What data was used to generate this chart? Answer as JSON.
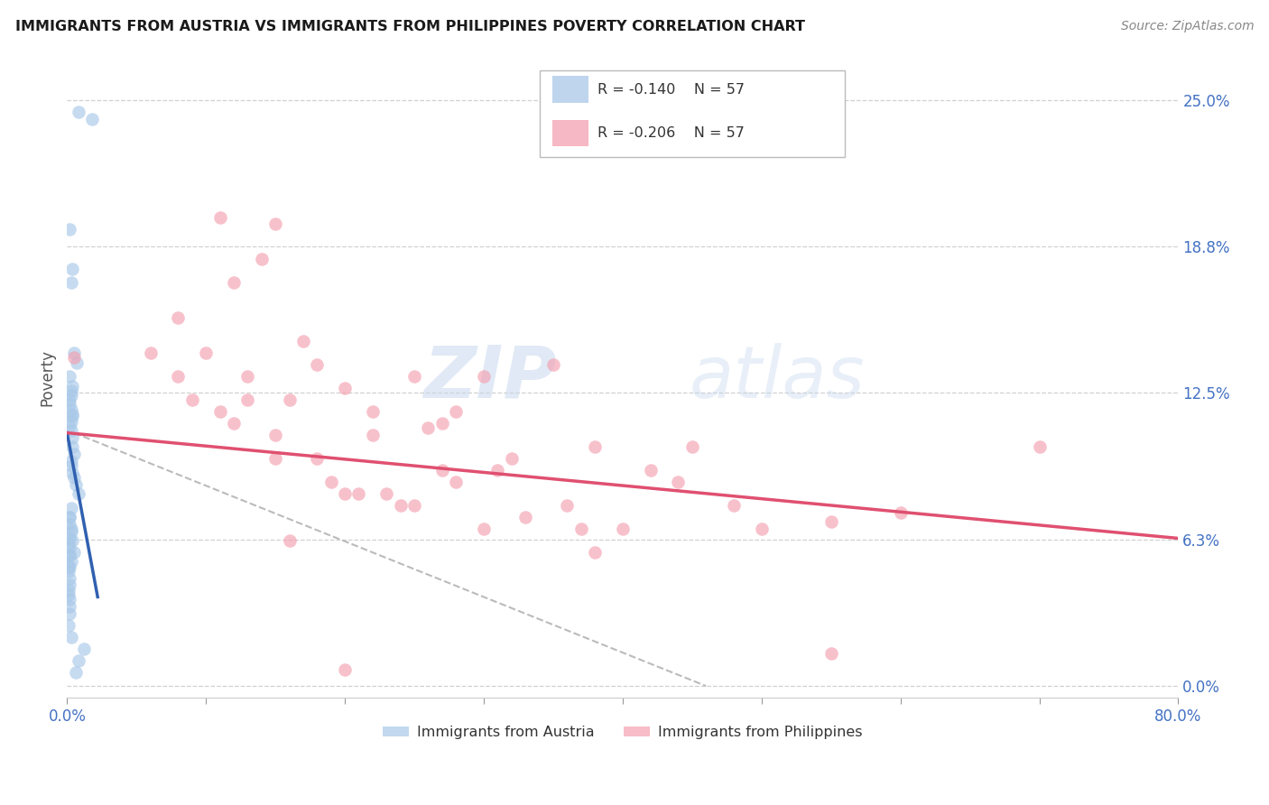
{
  "title": "IMMIGRANTS FROM AUSTRIA VS IMMIGRANTS FROM PHILIPPINES POVERTY CORRELATION CHART",
  "source": "Source: ZipAtlas.com",
  "ylabel": "Poverty",
  "xlim": [
    0.0,
    0.8
  ],
  "ylim": [
    -0.005,
    0.268
  ],
  "legend_r_austria": "R = -0.140",
  "legend_n_austria": "N = 57",
  "legend_r_philippines": "R = -0.206",
  "legend_n_philippines": "N = 57",
  "austria_color": "#a8c8e8",
  "philippines_color": "#f4a0b0",
  "austria_line_color": "#3060b0",
  "philippines_line_color": "#e05070",
  "dashed_color": "#bbbbbb",
  "austria_scatter_x": [
    0.008,
    0.018,
    0.002,
    0.004,
    0.003,
    0.005,
    0.007,
    0.002,
    0.004,
    0.003,
    0.003,
    0.002,
    0.002,
    0.003,
    0.004,
    0.004,
    0.003,
    0.002,
    0.003,
    0.004,
    0.004,
    0.005,
    0.003,
    0.003,
    0.004,
    0.005,
    0.006,
    0.008,
    0.003,
    0.002,
    0.002,
    0.003,
    0.002,
    0.001,
    0.002,
    0.002,
    0.003,
    0.002,
    0.001,
    0.002,
    0.002,
    0.001,
    0.001,
    0.002,
    0.002,
    0.002,
    0.001,
    0.003,
    0.012,
    0.008,
    0.006,
    0.005,
    0.004,
    0.003,
    0.002,
    0.002,
    0.001
  ],
  "austria_scatter_y": [
    0.245,
    0.242,
    0.195,
    0.178,
    0.172,
    0.142,
    0.138,
    0.132,
    0.128,
    0.126,
    0.124,
    0.122,
    0.12,
    0.118,
    0.116,
    0.115,
    0.113,
    0.111,
    0.109,
    0.106,
    0.102,
    0.099,
    0.096,
    0.094,
    0.091,
    0.089,
    0.086,
    0.082,
    0.076,
    0.072,
    0.069,
    0.066,
    0.063,
    0.061,
    0.059,
    0.056,
    0.053,
    0.051,
    0.049,
    0.046,
    0.043,
    0.041,
    0.039,
    0.037,
    0.034,
    0.031,
    0.026,
    0.021,
    0.016,
    0.011,
    0.006,
    0.057,
    0.062,
    0.067,
    0.072,
    0.056,
    0.051
  ],
  "philippines_scatter_x": [
    0.005,
    0.11,
    0.14,
    0.12,
    0.08,
    0.06,
    0.15,
    0.25,
    0.18,
    0.22,
    0.1,
    0.09,
    0.3,
    0.28,
    0.35,
    0.2,
    0.16,
    0.22,
    0.27,
    0.32,
    0.38,
    0.42,
    0.17,
    0.13,
    0.26,
    0.31,
    0.19,
    0.23,
    0.45,
    0.5,
    0.36,
    0.28,
    0.21,
    0.15,
    0.12,
    0.08,
    0.4,
    0.55,
    0.18,
    0.24,
    0.6,
    0.3,
    0.15,
    0.11,
    0.2,
    0.25,
    0.33,
    0.44,
    0.38,
    0.27,
    0.16,
    0.7,
    0.48,
    0.37,
    0.13,
    0.55,
    0.2
  ],
  "philippines_scatter_y": [
    0.14,
    0.2,
    0.182,
    0.172,
    0.157,
    0.142,
    0.197,
    0.132,
    0.137,
    0.117,
    0.142,
    0.122,
    0.132,
    0.117,
    0.137,
    0.127,
    0.122,
    0.107,
    0.112,
    0.097,
    0.102,
    0.092,
    0.147,
    0.132,
    0.11,
    0.092,
    0.087,
    0.082,
    0.102,
    0.067,
    0.077,
    0.087,
    0.082,
    0.097,
    0.112,
    0.132,
    0.067,
    0.07,
    0.097,
    0.077,
    0.074,
    0.067,
    0.107,
    0.117,
    0.082,
    0.077,
    0.072,
    0.087,
    0.057,
    0.092,
    0.062,
    0.102,
    0.077,
    0.067,
    0.122,
    0.014,
    0.007
  ],
  "austria_trend_x": [
    0.0,
    0.022
  ],
  "austria_trend_y": [
    0.108,
    0.038
  ],
  "philippines_trend_x": [
    0.0,
    0.8
  ],
  "philippines_trend_y": [
    0.108,
    0.063
  ],
  "dashed_trend_x": [
    0.005,
    0.46
  ],
  "dashed_trend_y": [
    0.108,
    0.0
  ],
  "watermark_zip": "ZIP",
  "watermark_atlas": "atlas",
  "background_color": "#ffffff",
  "grid_color": "#d0d0d0",
  "ytick_vals": [
    0.0,
    0.0625,
    0.125,
    0.1875,
    0.25
  ],
  "ytick_labels_right": [
    "0.0%",
    "6.3%",
    "12.5%",
    "18.8%",
    "25.0%"
  ],
  "xtick_vals": [
    0.0,
    0.1,
    0.2,
    0.3,
    0.4,
    0.5,
    0.6,
    0.7,
    0.8
  ],
  "xtick_label_left": "0.0%",
  "xtick_label_right": "80.0%"
}
